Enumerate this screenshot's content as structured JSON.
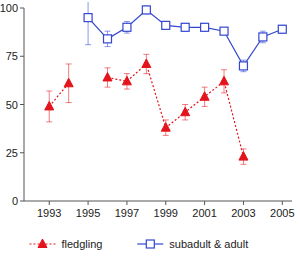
{
  "chart_data": {
    "type": "line",
    "x": [
      1993,
      1994,
      1995,
      1996,
      1997,
      1998,
      1999,
      2000,
      2001,
      2002,
      2003,
      2004,
      2005
    ],
    "series": [
      {
        "name": "fledgling",
        "color": "#e3141b",
        "marker": "triangle",
        "line_style": "dotted",
        "values": [
          49,
          61,
          null,
          64,
          62,
          71,
          38,
          46,
          54,
          62,
          23,
          null,
          null
        ],
        "errors": [
          8,
          10,
          null,
          5,
          4,
          5,
          4,
          4,
          5,
          6,
          4,
          null,
          null
        ]
      },
      {
        "name": "subadult & adult",
        "color": "#3347d1",
        "marker": "square",
        "line_style": "solid",
        "values": [
          null,
          null,
          95,
          84,
          90,
          99,
          91,
          90,
          90,
          88,
          70,
          85,
          89
        ],
        "errors": [
          null,
          null,
          14,
          4,
          3,
          2,
          2,
          2,
          2,
          1,
          3,
          3,
          2
        ]
      }
    ],
    "xlim": [
      1991.7,
      2005.5
    ],
    "xticks": [
      1993,
      1995,
      1997,
      1999,
      2001,
      2003,
      2005
    ],
    "ylim": [
      0,
      100
    ],
    "yticks": [
      0,
      25,
      50,
      75,
      100
    ],
    "grid": false,
    "legend": "bottom"
  }
}
